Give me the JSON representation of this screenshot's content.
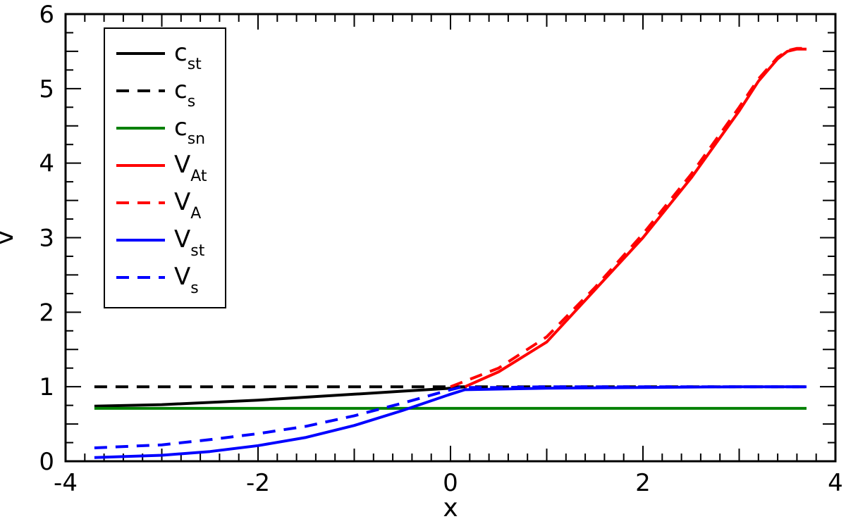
{
  "chart_data": {
    "type": "line",
    "xlabel": "x",
    "ylabel": "v",
    "xlim": [
      -4,
      4
    ],
    "ylim": [
      0,
      6
    ],
    "x_ticks": [
      "-4",
      "-2",
      "0",
      "2",
      "4"
    ],
    "y_ticks": [
      "0",
      "1",
      "2",
      "3",
      "4",
      "5",
      "6"
    ],
    "legend_position": "top-left",
    "series": [
      {
        "name": "c",
        "sub": "st",
        "color": "#000000",
        "dash": false,
        "x": [
          -3.7,
          -3.0,
          -2.0,
          -1.0,
          -0.5,
          0.0,
          0.15
        ],
        "y": [
          0.74,
          0.76,
          0.82,
          0.9,
          0.94,
          0.98,
          1.0
        ]
      },
      {
        "name": "c",
        "sub": "s",
        "color": "#000000",
        "dash": true,
        "x": [
          -3.7,
          3.7
        ],
        "y": [
          1.0,
          1.0
        ]
      },
      {
        "name": "c",
        "sub": "sn",
        "color": "#008000",
        "dash": false,
        "x": [
          -3.7,
          3.7
        ],
        "y": [
          0.71,
          0.71
        ]
      },
      {
        "name": "V",
        "sub": "At",
        "color": "#ff0000",
        "dash": false,
        "x": [
          0.15,
          0.5,
          1.0,
          1.5,
          2.0,
          2.5,
          3.0,
          3.2,
          3.4,
          3.5,
          3.6,
          3.7
        ],
        "y": [
          1.0,
          1.2,
          1.6,
          2.3,
          3.0,
          3.8,
          4.7,
          5.1,
          5.4,
          5.5,
          5.53,
          5.53
        ]
      },
      {
        "name": "V",
        "sub": "A",
        "color": "#ff0000",
        "dash": true,
        "x": [
          0.0,
          0.5,
          1.0,
          1.5,
          2.0,
          2.5,
          3.0,
          3.2,
          3.4,
          3.5,
          3.6,
          3.7
        ],
        "y": [
          1.0,
          1.25,
          1.67,
          2.33,
          3.05,
          3.85,
          4.75,
          5.13,
          5.42,
          5.51,
          5.54,
          5.54
        ]
      },
      {
        "name": "V",
        "sub": "st",
        "color": "#0000ff",
        "dash": false,
        "x": [
          -3.7,
          -3.0,
          -2.5,
          -2.0,
          -1.5,
          -1.0,
          -0.5,
          0.0,
          0.15,
          1.0,
          2.0,
          3.0,
          3.7
        ],
        "y": [
          0.05,
          0.08,
          0.13,
          0.21,
          0.32,
          0.48,
          0.68,
          0.9,
          0.96,
          0.98,
          0.99,
          1.0,
          1.0
        ]
      },
      {
        "name": "V",
        "sub": "s",
        "color": "#0000ff",
        "dash": true,
        "x": [
          -3.7,
          -3.0,
          -2.5,
          -2.0,
          -1.5,
          -1.0,
          -0.5,
          0.0,
          0.1,
          0.5,
          1.0,
          2.0,
          3.0,
          3.7
        ],
        "y": [
          0.18,
          0.22,
          0.29,
          0.37,
          0.47,
          0.61,
          0.78,
          0.96,
          0.99,
          0.99,
          1.0,
          1.0,
          1.0,
          1.0
        ]
      }
    ]
  }
}
